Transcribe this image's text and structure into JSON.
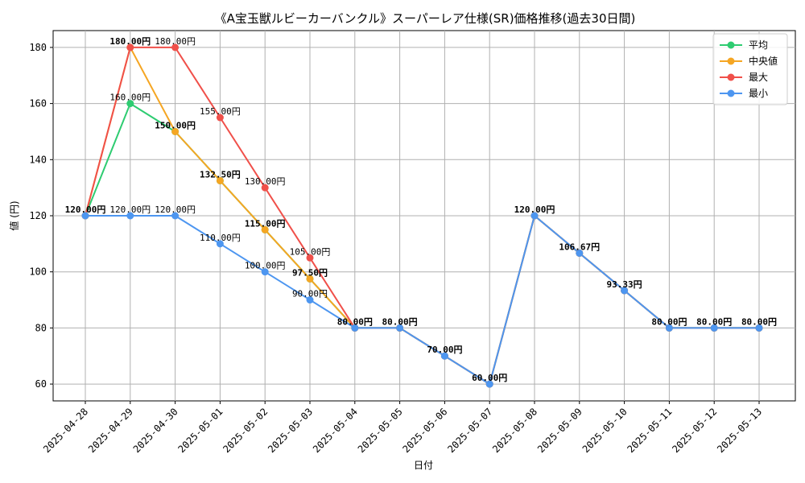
{
  "chart_data": {
    "type": "line",
    "title": "《A宝玉獣ルビーカーバンクル》スーパーレア仕様(SR)価格推移(過去30日間)",
    "xlabel": "日付",
    "ylabel": "値 (円)",
    "categories": [
      "2025-04-28",
      "2025-04-29",
      "2025-04-30",
      "2025-05-01",
      "2025-05-02",
      "2025-05-03",
      "2025-05-04",
      "2025-05-05",
      "2025-05-06",
      "2025-05-07",
      "2025-05-08",
      "2025-05-09",
      "2025-05-10",
      "2025-05-11",
      "2025-05-12",
      "2025-05-13"
    ],
    "yticks": [
      60,
      80,
      100,
      120,
      140,
      160,
      180
    ],
    "ylim": [
      54,
      186
    ],
    "grid": true,
    "legend_position": "top-right",
    "series": [
      {
        "name": "平均",
        "color": "#2ecc71",
        "values": [
          120,
          160,
          150,
          132.5,
          115,
          97.5,
          80,
          80,
          70,
          60,
          120,
          106.67,
          93.33,
          80,
          80,
          80
        ]
      },
      {
        "name": "中央値",
        "color": "#f5a623",
        "values": [
          120,
          180,
          150,
          132.5,
          115,
          97.5,
          80,
          80,
          70,
          60,
          120,
          106.67,
          93.33,
          80,
          80,
          80
        ]
      },
      {
        "name": "最大",
        "color": "#f0504a",
        "values": [
          120,
          180,
          180,
          155,
          130,
          105,
          80,
          80,
          70,
          60,
          120,
          106.67,
          93.33,
          80,
          80,
          80
        ]
      },
      {
        "name": "最小",
        "color": "#4d96f0",
        "values": [
          120,
          120,
          120,
          110,
          100,
          90,
          80,
          80,
          70,
          60,
          120,
          106.67,
          93.33,
          80,
          80,
          80
        ]
      }
    ],
    "data_labels": [
      {
        "x": "2025-04-28",
        "y": 120,
        "text": "120.00円",
        "bold": true
      },
      {
        "x": "2025-04-29",
        "y": 180,
        "text": "180.00円",
        "bold": true
      },
      {
        "x": "2025-04-29",
        "y": 160,
        "text": "160.00円",
        "bold": false
      },
      {
        "x": "2025-04-29",
        "y": 120,
        "text": "120.00円",
        "bold": false
      },
      {
        "x": "2025-04-30",
        "y": 180,
        "text": "180.00円",
        "bold": false
      },
      {
        "x": "2025-04-30",
        "y": 150,
        "text": "150.00円",
        "bold": true
      },
      {
        "x": "2025-04-30",
        "y": 120,
        "text": "120.00円",
        "bold": false
      },
      {
        "x": "2025-05-01",
        "y": 155,
        "text": "155.00円",
        "bold": false
      },
      {
        "x": "2025-05-01",
        "y": 132.5,
        "text": "132.50円",
        "bold": true
      },
      {
        "x": "2025-05-01",
        "y": 110,
        "text": "110.00円",
        "bold": false
      },
      {
        "x": "2025-05-02",
        "y": 130,
        "text": "130.00円",
        "bold": false
      },
      {
        "x": "2025-05-02",
        "y": 115,
        "text": "115.00円",
        "bold": true
      },
      {
        "x": "2025-05-02",
        "y": 100,
        "text": "100.00円",
        "bold": false
      },
      {
        "x": "2025-05-03",
        "y": 105,
        "text": "105.00円",
        "bold": false
      },
      {
        "x": "2025-05-03",
        "y": 97.5,
        "text": "97.50円",
        "bold": true
      },
      {
        "x": "2025-05-03",
        "y": 90,
        "text": "90.00円",
        "bold": false
      },
      {
        "x": "2025-05-04",
        "y": 80,
        "text": "80.00円",
        "bold": true
      },
      {
        "x": "2025-05-05",
        "y": 80,
        "text": "80.00円",
        "bold": true
      },
      {
        "x": "2025-05-06",
        "y": 70,
        "text": "70.00円",
        "bold": true
      },
      {
        "x": "2025-05-07",
        "y": 60,
        "text": "60.00円",
        "bold": true
      },
      {
        "x": "2025-05-08",
        "y": 120,
        "text": "120.00円",
        "bold": true
      },
      {
        "x": "2025-05-09",
        "y": 106.67,
        "text": "106.67円",
        "bold": true
      },
      {
        "x": "2025-05-10",
        "y": 93.33,
        "text": "93.33円",
        "bold": true
      },
      {
        "x": "2025-05-11",
        "y": 80,
        "text": "80.00円",
        "bold": true
      },
      {
        "x": "2025-05-12",
        "y": 80,
        "text": "80.00円",
        "bold": true
      },
      {
        "x": "2025-05-13",
        "y": 80,
        "text": "80.00円",
        "bold": true
      }
    ]
  }
}
